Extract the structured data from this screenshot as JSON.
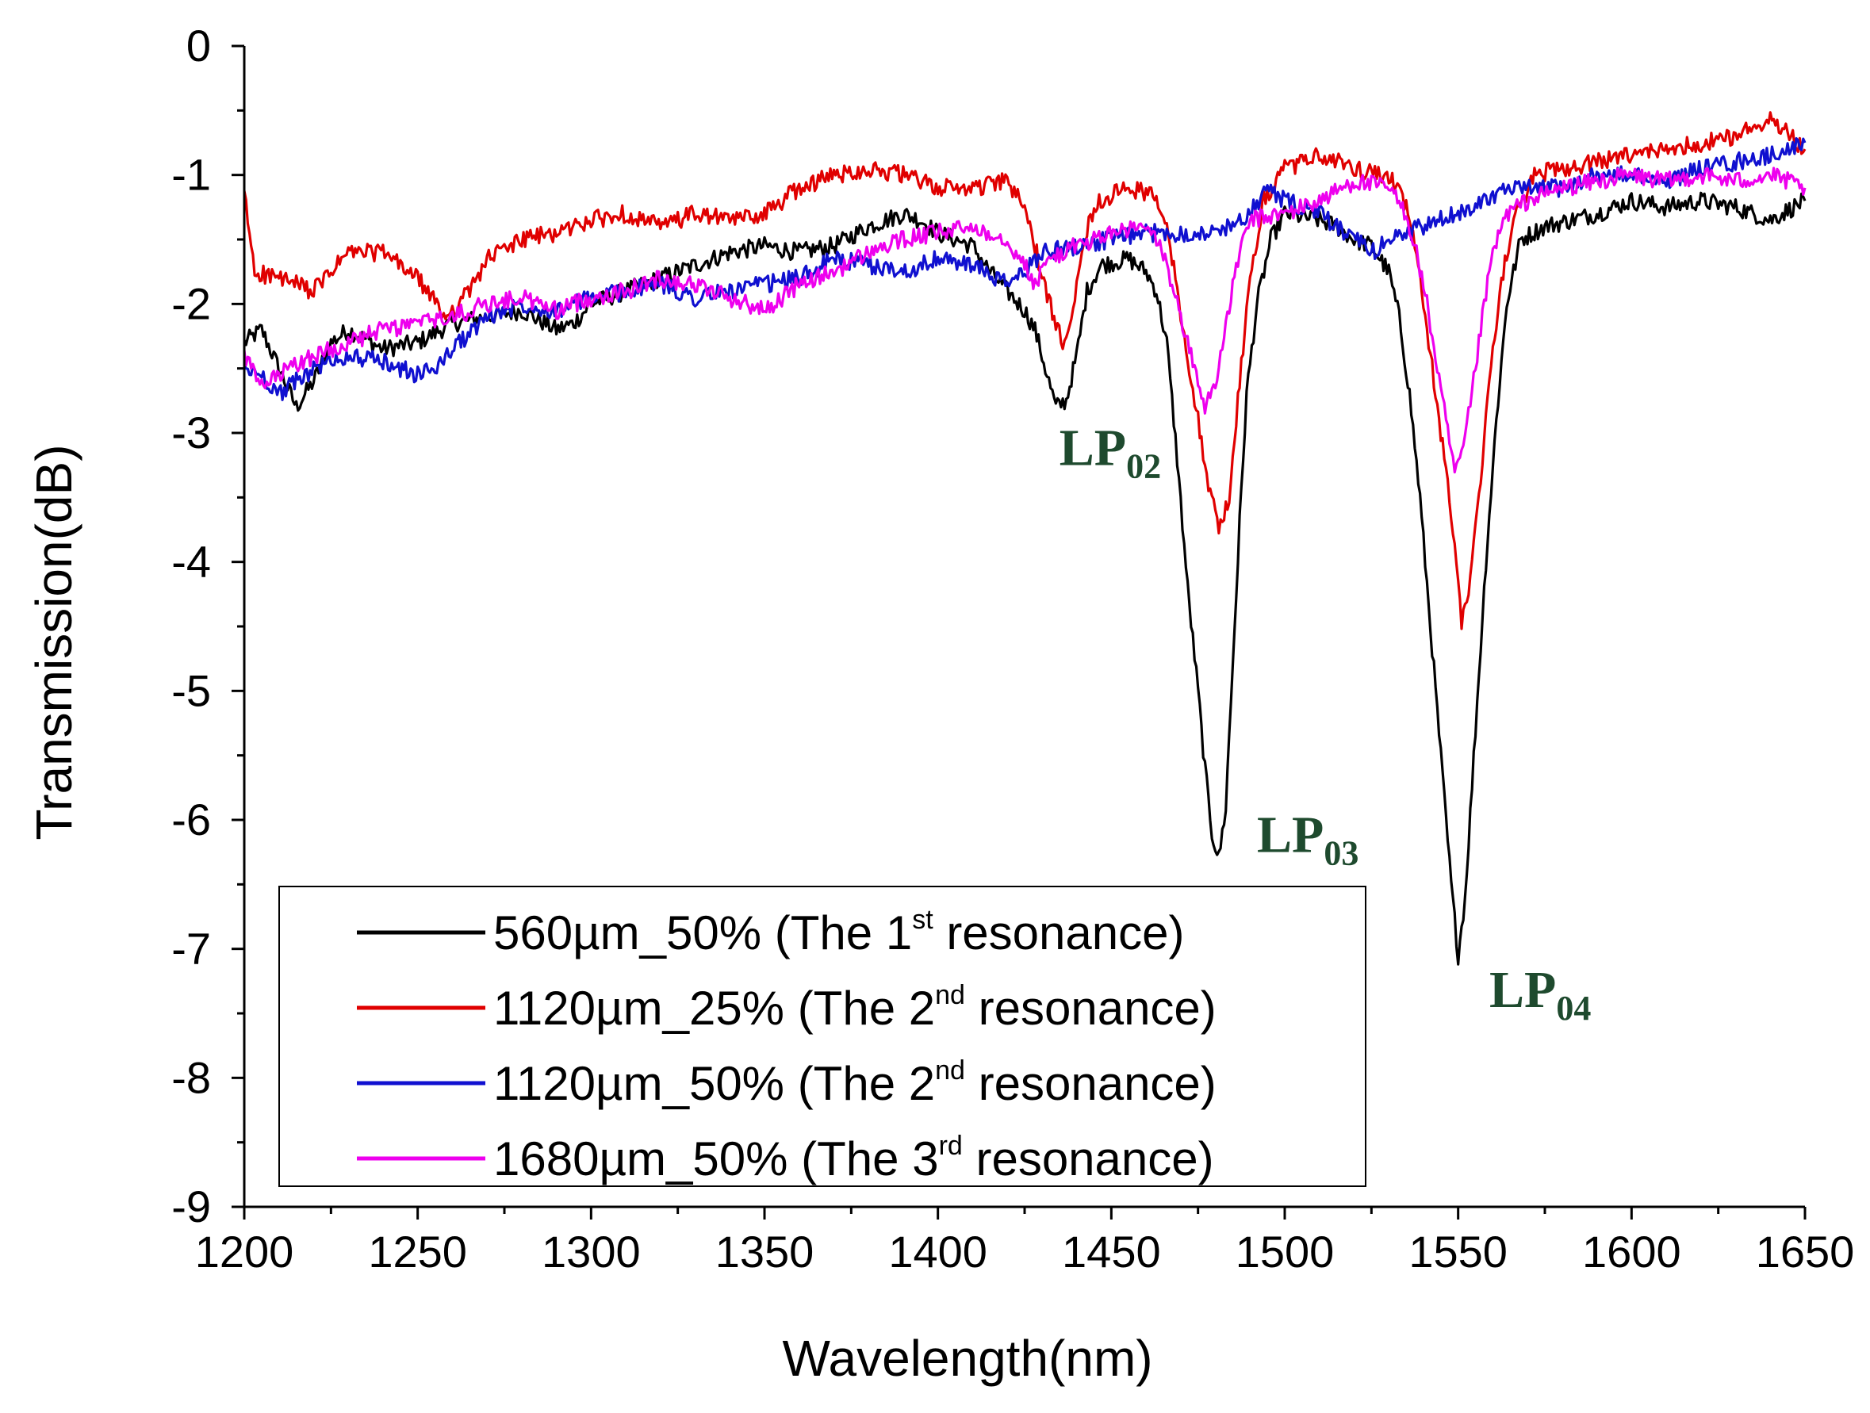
{
  "colors": {
    "background": "#ffffff",
    "axis": "#000000",
    "annotation": "#1e4a2e"
  },
  "chart_data": {
    "type": "line",
    "title": "",
    "xlabel": "Wavelength(nm)",
    "ylabel": "Transmission(dB)",
    "xlim": [
      1200,
      1650
    ],
    "ylim": [
      -9,
      0
    ],
    "xticks": [
      1200,
      1250,
      1300,
      1350,
      1400,
      1450,
      1500,
      1550,
      1600,
      1650
    ],
    "yticks": [
      0,
      -1,
      -2,
      -3,
      -4,
      -5,
      -6,
      -7,
      -8,
      -9
    ],
    "xtick_labels": [
      "1200",
      "1250",
      "1300",
      "1350",
      "1400",
      "1450",
      "1500",
      "1550",
      "1600",
      "1650"
    ],
    "ytick_labels": [
      "0",
      "-1",
      "-2",
      "-3",
      "-4",
      "-5",
      "-6",
      "-7",
      "-8",
      "-9"
    ],
    "grid": false,
    "legend_position": "bottom-left",
    "series": [
      {
        "name": "560µm_50% (The 1st resonance)",
        "label_main": "560µm_50% (The 1",
        "label_sup": "st",
        "label_end": " resonance)",
        "color": "#000000",
        "points": [
          [
            1200,
            -2.3
          ],
          [
            1205,
            -2.2
          ],
          [
            1210,
            -2.5
          ],
          [
            1215,
            -2.8
          ],
          [
            1220,
            -2.6
          ],
          [
            1225,
            -2.3
          ],
          [
            1230,
            -2.2
          ],
          [
            1240,
            -2.35
          ],
          [
            1250,
            -2.3
          ],
          [
            1260,
            -2.15
          ],
          [
            1270,
            -2.1
          ],
          [
            1280,
            -2.05
          ],
          [
            1290,
            -2.2
          ],
          [
            1295,
            -2.15
          ],
          [
            1300,
            -2.0
          ],
          [
            1310,
            -1.9
          ],
          [
            1320,
            -1.8
          ],
          [
            1330,
            -1.7
          ],
          [
            1340,
            -1.6
          ],
          [
            1350,
            -1.55
          ],
          [
            1360,
            -1.6
          ],
          [
            1370,
            -1.55
          ],
          [
            1380,
            -1.4
          ],
          [
            1390,
            -1.3
          ],
          [
            1395,
            -1.35
          ],
          [
            1400,
            -1.45
          ],
          [
            1410,
            -1.55
          ],
          [
            1415,
            -1.75
          ],
          [
            1420,
            -1.9
          ],
          [
            1425,
            -2.05
          ],
          [
            1428,
            -2.2
          ],
          [
            1431,
            -2.5
          ],
          [
            1434,
            -2.8
          ],
          [
            1437,
            -2.75
          ],
          [
            1440,
            -2.4
          ],
          [
            1443,
            -1.9
          ],
          [
            1447,
            -1.7
          ],
          [
            1455,
            -1.65
          ],
          [
            1460,
            -1.75
          ],
          [
            1463,
            -1.9
          ],
          [
            1466,
            -2.3
          ],
          [
            1469,
            -3.2
          ],
          [
            1472,
            -4.2
          ],
          [
            1475,
            -5.0
          ],
          [
            1477,
            -5.6
          ],
          [
            1479,
            -6.1
          ],
          [
            1481,
            -6.3
          ],
          [
            1483,
            -5.9
          ],
          [
            1485,
            -4.8
          ],
          [
            1487,
            -3.7
          ],
          [
            1489,
            -2.7
          ],
          [
            1492,
            -2.0
          ],
          [
            1496,
            -1.5
          ],
          [
            1500,
            -1.3
          ],
          [
            1510,
            -1.35
          ],
          [
            1515,
            -1.4
          ],
          [
            1520,
            -1.5
          ],
          [
            1525,
            -1.55
          ],
          [
            1530,
            -1.75
          ],
          [
            1533,
            -2.1
          ],
          [
            1536,
            -2.7
          ],
          [
            1539,
            -3.5
          ],
          [
            1542,
            -4.5
          ],
          [
            1545,
            -5.5
          ],
          [
            1548,
            -6.5
          ],
          [
            1550,
            -7.05
          ],
          [
            1552,
            -6.6
          ],
          [
            1555,
            -5.3
          ],
          [
            1558,
            -4.0
          ],
          [
            1561,
            -2.9
          ],
          [
            1564,
            -2.0
          ],
          [
            1568,
            -1.5
          ],
          [
            1575,
            -1.4
          ],
          [
            1590,
            -1.3
          ],
          [
            1600,
            -1.2
          ],
          [
            1610,
            -1.25
          ],
          [
            1620,
            -1.2
          ],
          [
            1630,
            -1.25
          ],
          [
            1640,
            -1.35
          ],
          [
            1650,
            -1.2
          ]
        ]
      },
      {
        "name": "1120µm_25% (The 2nd resonance)",
        "label_main": "1120µm_25% (The 2",
        "label_sup": "nd",
        "label_end": " resonance)",
        "color": "#e00000",
        "points": [
          [
            1200,
            -1.15
          ],
          [
            1203,
            -1.75
          ],
          [
            1210,
            -1.8
          ],
          [
            1220,
            -1.9
          ],
          [
            1230,
            -1.6
          ],
          [
            1240,
            -1.6
          ],
          [
            1250,
            -1.8
          ],
          [
            1258,
            -2.1
          ],
          [
            1265,
            -1.9
          ],
          [
            1270,
            -1.65
          ],
          [
            1280,
            -1.5
          ],
          [
            1290,
            -1.45
          ],
          [
            1300,
            -1.35
          ],
          [
            1310,
            -1.3
          ],
          [
            1320,
            -1.4
          ],
          [
            1330,
            -1.3
          ],
          [
            1340,
            -1.35
          ],
          [
            1350,
            -1.3
          ],
          [
            1360,
            -1.1
          ],
          [
            1370,
            -1.0
          ],
          [
            1380,
            -0.95
          ],
          [
            1390,
            -1.0
          ],
          [
            1400,
            -1.1
          ],
          [
            1410,
            -1.1
          ],
          [
            1420,
            -1.05
          ],
          [
            1425,
            -1.25
          ],
          [
            1428,
            -1.55
          ],
          [
            1431,
            -1.9
          ],
          [
            1434,
            -2.15
          ],
          [
            1436,
            -2.3
          ],
          [
            1439,
            -2.0
          ],
          [
            1442,
            -1.5
          ],
          [
            1446,
            -1.2
          ],
          [
            1455,
            -1.1
          ],
          [
            1462,
            -1.15
          ],
          [
            1466,
            -1.4
          ],
          [
            1469,
            -1.9
          ],
          [
            1472,
            -2.4
          ],
          [
            1475,
            -2.9
          ],
          [
            1478,
            -3.4
          ],
          [
            1481,
            -3.75
          ],
          [
            1484,
            -3.5
          ],
          [
            1487,
            -2.6
          ],
          [
            1490,
            -1.8
          ],
          [
            1494,
            -1.2
          ],
          [
            1500,
            -0.95
          ],
          [
            1510,
            -0.85
          ],
          [
            1520,
            -0.95
          ],
          [
            1530,
            -1.0
          ],
          [
            1535,
            -1.25
          ],
          [
            1538,
            -1.6
          ],
          [
            1541,
            -2.2
          ],
          [
            1544,
            -2.8
          ],
          [
            1547,
            -3.4
          ],
          [
            1549,
            -3.9
          ],
          [
            1551,
            -4.45
          ],
          [
            1553,
            -4.2
          ],
          [
            1556,
            -3.5
          ],
          [
            1559,
            -2.6
          ],
          [
            1562,
            -1.9
          ],
          [
            1566,
            -1.35
          ],
          [
            1572,
            -1.0
          ],
          [
            1580,
            -0.95
          ],
          [
            1590,
            -0.9
          ],
          [
            1600,
            -0.85
          ],
          [
            1610,
            -0.8
          ],
          [
            1620,
            -0.75
          ],
          [
            1630,
            -0.7
          ],
          [
            1640,
            -0.55
          ],
          [
            1650,
            -0.8
          ]
        ]
      },
      {
        "name": "1120µm_50% (The 2nd resonance)",
        "label_main": "1120µm_50% (The 2",
        "label_sup": "nd",
        "label_end": " resonance)",
        "color": "#1010d0",
        "points": [
          [
            1200,
            -2.5
          ],
          [
            1205,
            -2.55
          ],
          [
            1210,
            -2.7
          ],
          [
            1220,
            -2.5
          ],
          [
            1230,
            -2.4
          ],
          [
            1240,
            -2.45
          ],
          [
            1250,
            -2.55
          ],
          [
            1255,
            -2.5
          ],
          [
            1260,
            -2.35
          ],
          [
            1270,
            -2.1
          ],
          [
            1280,
            -2.0
          ],
          [
            1290,
            -2.05
          ],
          [
            1300,
            -1.95
          ],
          [
            1310,
            -1.9
          ],
          [
            1320,
            -1.85
          ],
          [
            1330,
            -1.95
          ],
          [
            1340,
            -1.9
          ],
          [
            1350,
            -1.85
          ],
          [
            1360,
            -1.8
          ],
          [
            1370,
            -1.65
          ],
          [
            1380,
            -1.7
          ],
          [
            1390,
            -1.75
          ],
          [
            1400,
            -1.65
          ],
          [
            1410,
            -1.7
          ],
          [
            1420,
            -1.85
          ],
          [
            1425,
            -1.75
          ],
          [
            1430,
            -1.6
          ],
          [
            1440,
            -1.55
          ],
          [
            1450,
            -1.5
          ],
          [
            1460,
            -1.45
          ],
          [
            1470,
            -1.45
          ],
          [
            1480,
            -1.45
          ],
          [
            1490,
            -1.3
          ],
          [
            1495,
            -1.1
          ],
          [
            1500,
            -1.2
          ],
          [
            1510,
            -1.3
          ],
          [
            1520,
            -1.5
          ],
          [
            1525,
            -1.6
          ],
          [
            1530,
            -1.5
          ],
          [
            1540,
            -1.4
          ],
          [
            1550,
            -1.3
          ],
          [
            1560,
            -1.15
          ],
          [
            1570,
            -1.1
          ],
          [
            1580,
            -1.1
          ],
          [
            1590,
            -1.0
          ],
          [
            1600,
            -1.0
          ],
          [
            1610,
            -1.05
          ],
          [
            1620,
            -0.95
          ],
          [
            1630,
            -0.9
          ],
          [
            1640,
            -0.85
          ],
          [
            1650,
            -0.75
          ]
        ]
      },
      {
        "name": "1680µm_50% (The 3rd resonance)",
        "label_main": "1680µm_50% (The 3",
        "label_sup": "rd",
        "label_end": " resonance)",
        "color": "#ee00ee",
        "points": [
          [
            1200,
            -2.4
          ],
          [
            1205,
            -2.65
          ],
          [
            1210,
            -2.55
          ],
          [
            1220,
            -2.4
          ],
          [
            1230,
            -2.3
          ],
          [
            1240,
            -2.2
          ],
          [
            1250,
            -2.15
          ],
          [
            1260,
            -2.1
          ],
          [
            1270,
            -2.0
          ],
          [
            1280,
            -1.95
          ],
          [
            1290,
            -2.05
          ],
          [
            1300,
            -1.95
          ],
          [
            1310,
            -1.9
          ],
          [
            1320,
            -1.8
          ],
          [
            1330,
            -1.85
          ],
          [
            1340,
            -1.95
          ],
          [
            1350,
            -2.05
          ],
          [
            1360,
            -1.85
          ],
          [
            1370,
            -1.75
          ],
          [
            1380,
            -1.6
          ],
          [
            1390,
            -1.5
          ],
          [
            1400,
            -1.45
          ],
          [
            1410,
            -1.4
          ],
          [
            1420,
            -1.5
          ],
          [
            1425,
            -1.7
          ],
          [
            1428,
            -1.85
          ],
          [
            1432,
            -1.65
          ],
          [
            1440,
            -1.55
          ],
          [
            1450,
            -1.45
          ],
          [
            1460,
            -1.4
          ],
          [
            1465,
            -1.6
          ],
          [
            1468,
            -1.9
          ],
          [
            1471,
            -2.2
          ],
          [
            1474,
            -2.5
          ],
          [
            1477,
            -2.8
          ],
          [
            1480,
            -2.6
          ],
          [
            1483,
            -2.2
          ],
          [
            1486,
            -1.7
          ],
          [
            1490,
            -1.35
          ],
          [
            1500,
            -1.3
          ],
          [
            1510,
            -1.2
          ],
          [
            1520,
            -1.05
          ],
          [
            1530,
            -1.1
          ],
          [
            1535,
            -1.3
          ],
          [
            1538,
            -1.6
          ],
          [
            1541,
            -2.0
          ],
          [
            1544,
            -2.5
          ],
          [
            1547,
            -3.0
          ],
          [
            1549,
            -3.3
          ],
          [
            1551,
            -3.2
          ],
          [
            1554,
            -2.7
          ],
          [
            1557,
            -2.1
          ],
          [
            1560,
            -1.6
          ],
          [
            1564,
            -1.3
          ],
          [
            1570,
            -1.2
          ],
          [
            1580,
            -1.1
          ],
          [
            1590,
            -1.05
          ],
          [
            1600,
            -1.0
          ],
          [
            1610,
            -1.05
          ],
          [
            1620,
            -1.0
          ],
          [
            1630,
            -1.05
          ],
          [
            1640,
            -1.0
          ],
          [
            1650,
            -1.1
          ]
        ]
      }
    ],
    "annotations": [
      {
        "main": "LP",
        "sub": "02",
        "x": 1435,
        "y": -3.25
      },
      {
        "main": "LP",
        "sub": "03",
        "x": 1492,
        "y": -6.25
      },
      {
        "main": "LP",
        "sub": "04",
        "x": 1559,
        "y": -7.45
      }
    ]
  }
}
